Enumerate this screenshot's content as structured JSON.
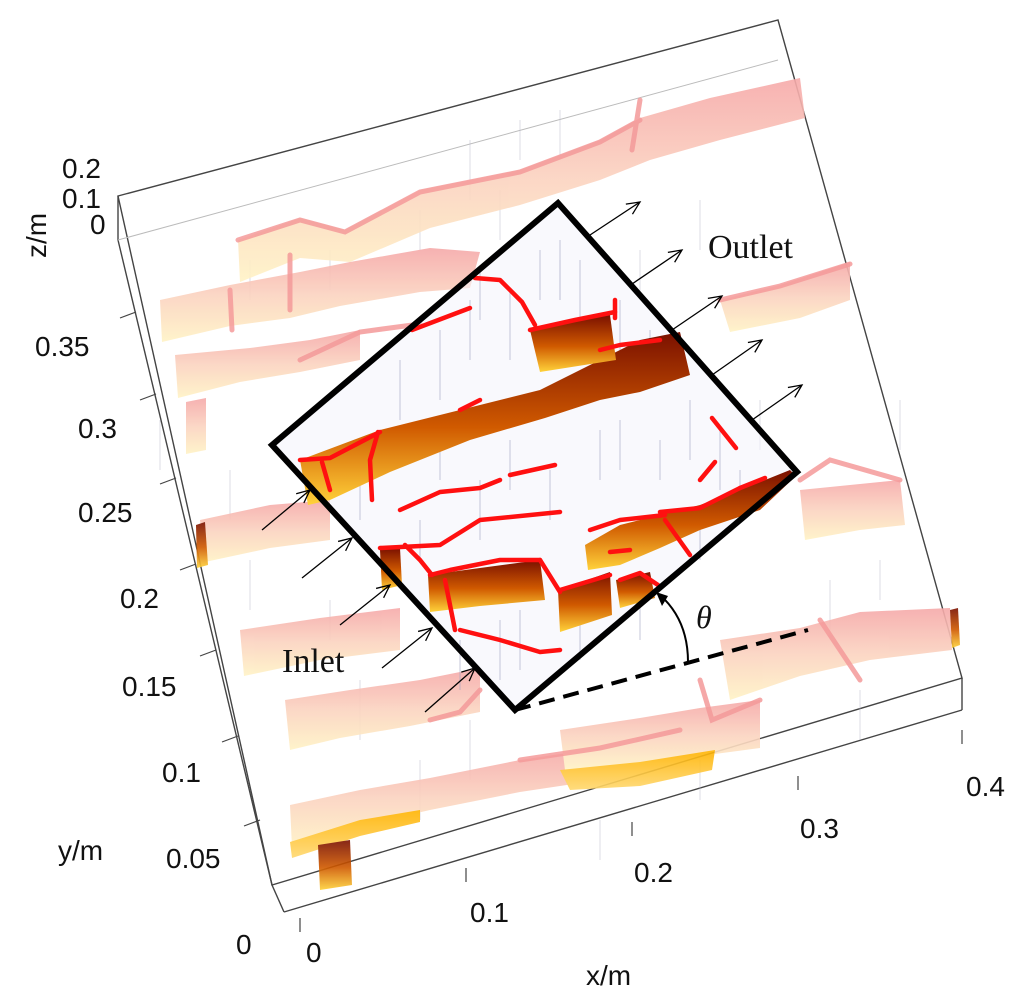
{
  "figure": {
    "axes": {
      "z_label": "z/m",
      "y_label": "y/m",
      "x_label": "x/m",
      "z_ticks": [
        "0.2",
        "0.1",
        "0"
      ],
      "y_ticks": [
        "0.35",
        "0.3",
        "0.25",
        "0.2",
        "0.15",
        "0.1",
        "0.05",
        "0"
      ],
      "x_ticks": [
        "0",
        "0.1",
        "0.2",
        "0.3",
        "0.4"
      ]
    },
    "annotations": {
      "outlet": "Outlet",
      "inlet": "Inlet",
      "theta": "θ"
    },
    "colors": {
      "fracture_trace": "#ff1010",
      "band_dark": "#8a1400",
      "band_light": "#ffd020",
      "faded_band_top": "#f7b3b3",
      "faded_band_bottom": "#fdf2c4",
      "frame": "#000000"
    }
  }
}
